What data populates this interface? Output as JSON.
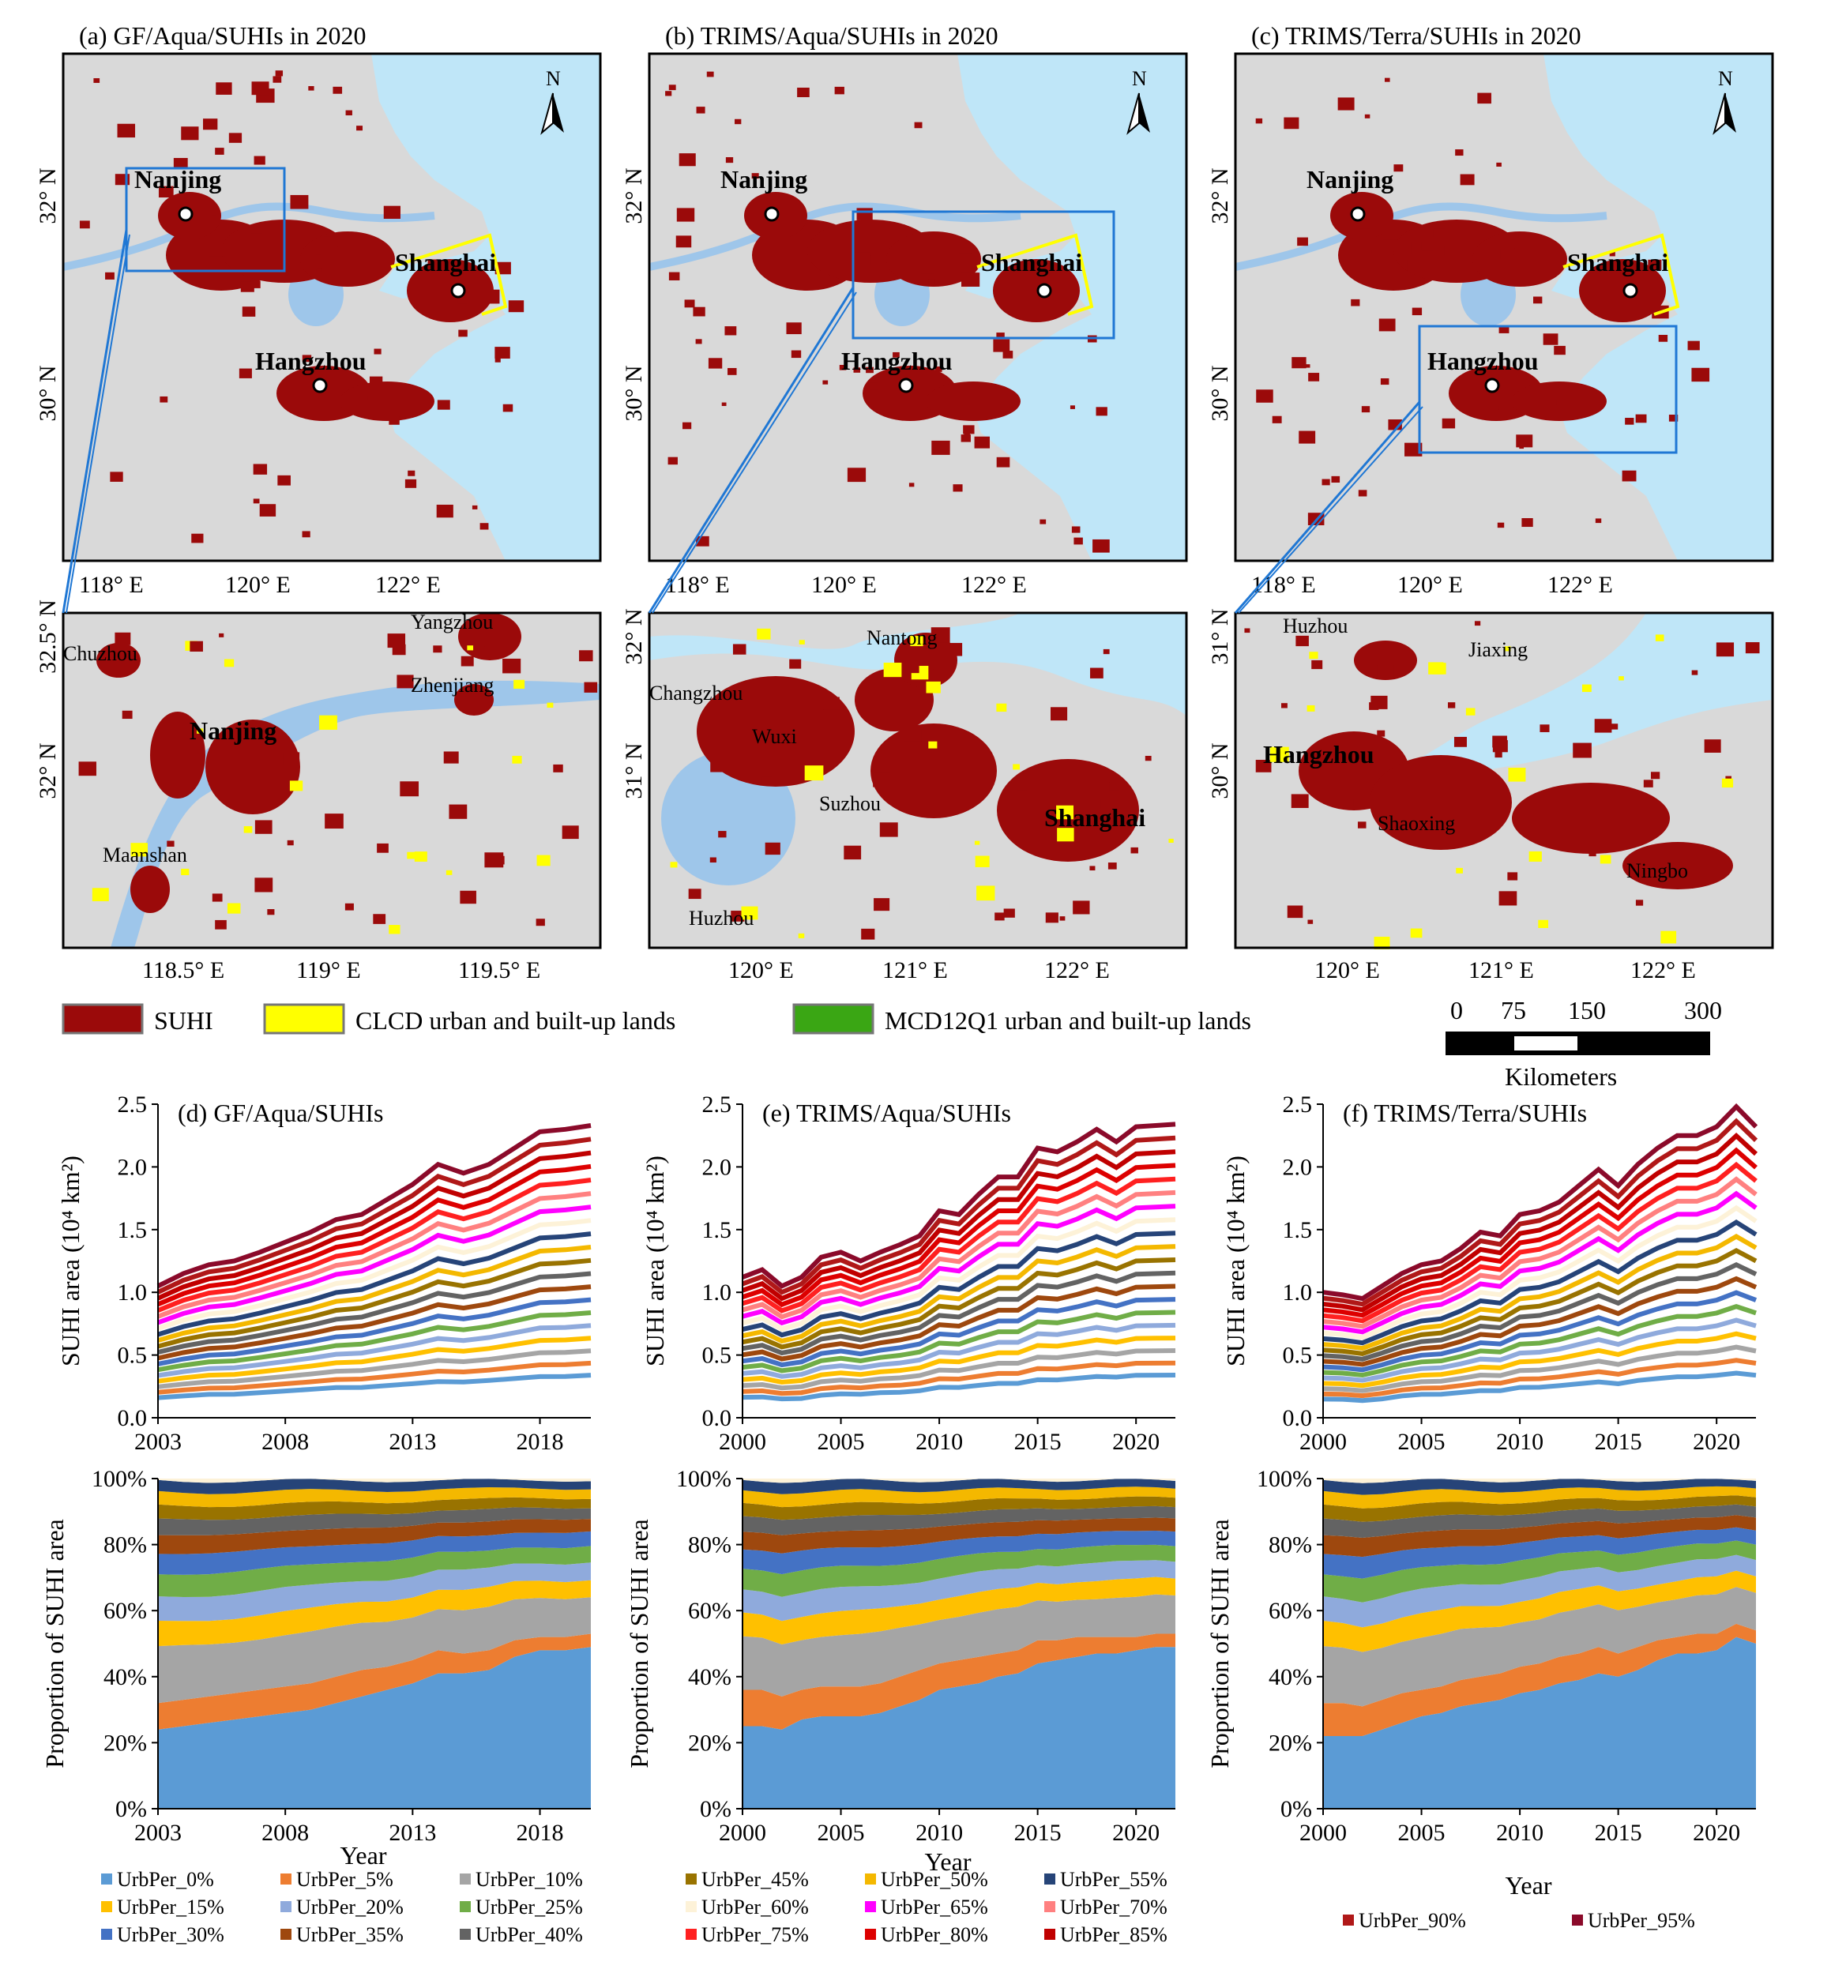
{
  "maps": [
    {
      "title": "(a) GF/Aqua/SUHIs in 2020",
      "lat_labels": [
        "32° N",
        "30° N"
      ],
      "lon_labels": [
        "118° E",
        "120° E",
        "122° E"
      ],
      "cities": [
        "Nanjing",
        "Shanghai",
        "Hangzhou"
      ],
      "north": "N",
      "inset": {
        "lat_labels": [
          "32.5° N",
          "32° N"
        ],
        "lon_labels": [
          "118.5° E",
          "119° E",
          "119.5° E"
        ],
        "cities": [
          "Chuzhou",
          "Yangzhou",
          "Zhenjiang",
          "Nanjing",
          "Maanshan"
        ]
      }
    },
    {
      "title": "(b) TRIMS/Aqua/SUHIs in 2020",
      "lat_labels": [
        "32° N",
        "30° N"
      ],
      "lon_labels": [
        "118° E",
        "120° E",
        "122° E"
      ],
      "cities": [
        "Nanjing",
        "Shanghai",
        "Hangzhou"
      ],
      "north": "N",
      "inset": {
        "lat_labels": [
          "32° N",
          "31° N"
        ],
        "lon_labels": [
          "120° E",
          "121° E",
          "122° E"
        ],
        "cities": [
          "Nantong",
          "Changzhou",
          "Wuxi",
          "Suzhou",
          "Shanghai",
          "Huzhou"
        ]
      }
    },
    {
      "title": "(c) TRIMS/Terra/SUHIs in 2020",
      "lat_labels": [
        "32° N",
        "30° N"
      ],
      "lon_labels": [
        "118° E",
        "120° E",
        "122° E"
      ],
      "cities": [
        "Nanjing",
        "Shanghai",
        "Hangzhou"
      ],
      "north": "N",
      "inset": {
        "lat_labels": [
          "31° N",
          "30° N"
        ],
        "lon_labels": [
          "120° E",
          "121° E",
          "122° E"
        ],
        "cities": [
          "Huzhou",
          "Jiaxing",
          "Hangzhou",
          "Shaoxing",
          "Ningbo"
        ]
      }
    }
  ],
  "map_legend": {
    "items": [
      {
        "label": "SUHI",
        "color": "#9b0a0a"
      },
      {
        "label": "CLCD urban and built-up lands",
        "color": "#ffff00"
      },
      {
        "label": "MCD12Q1 urban and built-up lands",
        "color": "#3aa614"
      }
    ],
    "scale_ticks": [
      "0",
      "75",
      "150",
      "300"
    ],
    "scale_unit": "Kilometers"
  },
  "colors": {
    "sea": "#bfe6f8",
    "land": "#d9d9d9",
    "water": "#9ec6ea",
    "box": "#1f77d4"
  },
  "chart_data": [
    {
      "type": "line",
      "title": "(d) GF/Aqua/SUHIs",
      "xlabel": "",
      "ylabel": "SUHI area (10⁴ km²)",
      "x": [
        2003,
        2004,
        2005,
        2006,
        2007,
        2008,
        2009,
        2010,
        2011,
        2012,
        2013,
        2014,
        2015,
        2016,
        2017,
        2018,
        2019,
        2020
      ],
      "xticks": [
        2003,
        2008,
        2013,
        2018
      ],
      "ylim": [
        0,
        2.5
      ],
      "yticks": [
        "0.0",
        "0.5",
        "1.0",
        "1.5",
        "2.0",
        "2.5"
      ],
      "series_note": "20 cumulative series UrbPer_0%…UrbPer_95%; top series total",
      "total": [
        1.05,
        1.15,
        1.22,
        1.25,
        1.32,
        1.4,
        1.48,
        1.58,
        1.62,
        1.74,
        1.86,
        2.02,
        1.95,
        2.02,
        2.15,
        2.28,
        2.3,
        2.33
      ],
      "bottom": [
        0.12,
        0.13,
        0.14,
        0.14,
        0.15,
        0.16,
        0.17,
        0.18,
        0.18,
        0.19,
        0.2,
        0.21,
        0.21,
        0.22,
        0.23,
        0.24,
        0.24,
        0.25
      ]
    },
    {
      "type": "line",
      "title": "(e) TRIMS/Aqua/SUHIs",
      "xlabel": "",
      "ylabel": "SUHI area (10⁴ km²)",
      "x": [
        2000,
        2001,
        2002,
        2003,
        2004,
        2005,
        2006,
        2007,
        2008,
        2009,
        2010,
        2011,
        2012,
        2013,
        2014,
        2015,
        2016,
        2017,
        2018,
        2019,
        2020,
        2021,
        2022
      ],
      "xticks": [
        2000,
        2005,
        2010,
        2015,
        2020
      ],
      "ylim": [
        0,
        2.5
      ],
      "yticks": [
        "0.0",
        "0.5",
        "1.0",
        "1.5",
        "2.0",
        "2.5"
      ],
      "total": [
        1.12,
        1.18,
        1.05,
        1.12,
        1.28,
        1.32,
        1.25,
        1.32,
        1.38,
        1.45,
        1.65,
        1.62,
        1.78,
        1.92,
        1.92,
        2.15,
        2.12,
        2.2,
        2.3,
        2.2,
        2.32,
        2.33,
        2.34
      ],
      "bottom": [
        0.12,
        0.12,
        0.11,
        0.11,
        0.13,
        0.14,
        0.14,
        0.15,
        0.15,
        0.16,
        0.18,
        0.18,
        0.19,
        0.2,
        0.2,
        0.22,
        0.22,
        0.23,
        0.24,
        0.24,
        0.25,
        0.25,
        0.25
      ]
    },
    {
      "type": "line",
      "title": "(f) TRIMS/Terra/SUHIs",
      "xlabel": "",
      "ylabel": "SUHI area (10⁴ km²)",
      "x": [
        2000,
        2001,
        2002,
        2003,
        2004,
        2005,
        2006,
        2007,
        2008,
        2009,
        2010,
        2011,
        2012,
        2013,
        2014,
        2015,
        2016,
        2017,
        2018,
        2019,
        2020,
        2021,
        2022
      ],
      "xticks": [
        2000,
        2005,
        2010,
        2015,
        2020
      ],
      "ylim": [
        0,
        2.5
      ],
      "yticks": [
        "0.0",
        "0.5",
        "1.0",
        "1.5",
        "2.0",
        "2.5"
      ],
      "total": [
        1.0,
        0.98,
        0.95,
        1.05,
        1.15,
        1.22,
        1.25,
        1.35,
        1.48,
        1.45,
        1.62,
        1.65,
        1.72,
        1.85,
        1.98,
        1.85,
        2.02,
        2.15,
        2.25,
        2.25,
        2.32,
        2.48,
        2.32
      ],
      "bottom": [
        0.11,
        0.11,
        0.1,
        0.11,
        0.13,
        0.14,
        0.14,
        0.15,
        0.16,
        0.16,
        0.18,
        0.18,
        0.19,
        0.2,
        0.21,
        0.2,
        0.22,
        0.23,
        0.24,
        0.24,
        0.25,
        0.26,
        0.25
      ]
    },
    {
      "type": "area",
      "title": "",
      "xlabel": "Year",
      "ylabel": "Proportion of SUHI area",
      "x": [
        2003,
        2004,
        2005,
        2006,
        2007,
        2008,
        2009,
        2010,
        2011,
        2012,
        2013,
        2014,
        2015,
        2016,
        2017,
        2018,
        2019,
        2020
      ],
      "xticks": [
        2003,
        2008,
        2013,
        2018
      ],
      "ylim": [
        0,
        100
      ],
      "yticks": [
        "0%",
        "20%",
        "40%",
        "60%",
        "80%",
        "100%"
      ],
      "first_share": [
        24,
        25,
        26,
        27,
        28,
        29,
        30,
        32,
        34,
        36,
        38,
        41,
        41,
        42,
        46,
        48,
        48,
        49
      ],
      "first_two_share": [
        32,
        33,
        34,
        35,
        36,
        37,
        38,
        40,
        42,
        43,
        45,
        48,
        47,
        48,
        51,
        52,
        52,
        53
      ]
    },
    {
      "type": "area",
      "title": "",
      "xlabel": "Year",
      "ylabel": "Proportion of SUHI area",
      "x": [
        2000,
        2001,
        2002,
        2003,
        2004,
        2005,
        2006,
        2007,
        2008,
        2009,
        2010,
        2011,
        2012,
        2013,
        2014,
        2015,
        2016,
        2017,
        2018,
        2019,
        2020,
        2021,
        2022
      ],
      "xticks": [
        2000,
        2005,
        2010,
        2015,
        2020
      ],
      "ylim": [
        0,
        100
      ],
      "yticks": [
        "0%",
        "20%",
        "40%",
        "60%",
        "80%",
        "100%"
      ],
      "first_share": [
        25,
        25,
        24,
        27,
        28,
        28,
        28,
        29,
        31,
        33,
        36,
        37,
        38,
        40,
        41,
        44,
        45,
        46,
        47,
        47,
        48,
        49,
        49
      ],
      "first_two_share": [
        36,
        36,
        34,
        36,
        37,
        37,
        37,
        38,
        40,
        42,
        44,
        45,
        46,
        47,
        48,
        51,
        51,
        52,
        52,
        52,
        52,
        53,
        53
      ]
    },
    {
      "type": "area",
      "title": "",
      "xlabel": "Year",
      "ylabel": "Proportion of SUHI area",
      "x": [
        2000,
        2001,
        2002,
        2003,
        2004,
        2005,
        2006,
        2007,
        2008,
        2009,
        2010,
        2011,
        2012,
        2013,
        2014,
        2015,
        2016,
        2017,
        2018,
        2019,
        2020,
        2021,
        2022
      ],
      "xticks": [
        2000,
        2005,
        2010,
        2015,
        2020
      ],
      "ylim": [
        0,
        100
      ],
      "yticks": [
        "0%",
        "20%",
        "40%",
        "60%",
        "80%",
        "100%"
      ],
      "first_share": [
        22,
        22,
        22,
        24,
        26,
        28,
        29,
        31,
        32,
        33,
        35,
        36,
        38,
        39,
        41,
        40,
        42,
        45,
        47,
        47,
        48,
        52,
        50
      ],
      "first_two_share": [
        32,
        32,
        31,
        33,
        35,
        36,
        37,
        39,
        40,
        41,
        43,
        44,
        46,
        47,
        49,
        47,
        49,
        51,
        52,
        53,
        53,
        56,
        54
      ]
    }
  ],
  "series_legend": [
    {
      "label": "UrbPer_0%",
      "color": "#5b9bd5"
    },
    {
      "label": "UrbPer_5%",
      "color": "#ed7d31"
    },
    {
      "label": "UrbPer_10%",
      "color": "#a5a5a5"
    },
    {
      "label": "UrbPer_15%",
      "color": "#ffc000"
    },
    {
      "label": "UrbPer_20%",
      "color": "#8faadc"
    },
    {
      "label": "UrbPer_25%",
      "color": "#70ad47"
    },
    {
      "label": "UrbPer_30%",
      "color": "#4472c4"
    },
    {
      "label": "UrbPer_35%",
      "color": "#9e480e"
    },
    {
      "label": "UrbPer_40%",
      "color": "#636363"
    },
    {
      "label": "UrbPer_45%",
      "color": "#997300"
    },
    {
      "label": "UrbPer_50%",
      "color": "#f4b800"
    },
    {
      "label": "UrbPer_55%",
      "color": "#264478"
    },
    {
      "label": "UrbPer_60%",
      "color": "#fdf2d8"
    },
    {
      "label": "UrbPer_65%",
      "color": "#ff00ff"
    },
    {
      "label": "UrbPer_70%",
      "color": "#ff8080"
    },
    {
      "label": "UrbPer_75%",
      "color": "#ff2020"
    },
    {
      "label": "UrbPer_80%",
      "color": "#dd0000"
    },
    {
      "label": "UrbPer_85%",
      "color": "#c00000"
    },
    {
      "label": "UrbPer_90%",
      "color": "#b01818"
    },
    {
      "label": "UrbPer_95%",
      "color": "#8b0a2a"
    }
  ]
}
